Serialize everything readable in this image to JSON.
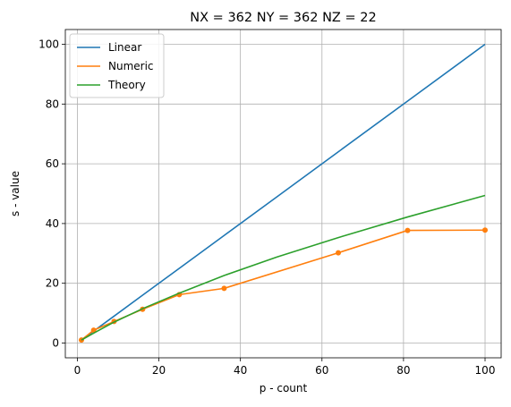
{
  "chart_data": {
    "type": "line",
    "title": "NX = 362 NY = 362 NZ = 22",
    "xlabel": "p - count",
    "ylabel": "s - value",
    "xlim": [
      -2.95,
      103.95
    ],
    "ylim": [
      -4.95,
      104.95
    ],
    "xticks": [
      0,
      20,
      40,
      60,
      80,
      100
    ],
    "yticks": [
      0,
      20,
      40,
      60,
      80,
      100
    ],
    "grid": true,
    "legend_position": "top-left",
    "series": [
      {
        "name": "Linear",
        "color": "#1f77b4",
        "markers": false,
        "x": [
          1,
          4,
          9,
          16,
          25,
          36,
          49,
          64,
          81,
          100
        ],
        "y": [
          1,
          4,
          9,
          16,
          25,
          36,
          49,
          64,
          81,
          100
        ]
      },
      {
        "name": "Numeric",
        "color": "#ff7f0e",
        "markers": true,
        "x": [
          1,
          4,
          9,
          16,
          25,
          36,
          64,
          81,
          100
        ],
        "y": [
          1,
          4.3,
          7.2,
          11.3,
          16.2,
          18.3,
          30.2,
          37.7,
          37.8
        ]
      },
      {
        "name": "Theory",
        "color": "#2ca02c",
        "markers": false,
        "x": [
          1,
          4,
          9,
          16,
          25,
          36,
          49,
          64,
          81,
          100
        ],
        "y": [
          1,
          3.3,
          7.0,
          11.5,
          16.7,
          22.6,
          28.8,
          35.3,
          42.2,
          49.4
        ]
      }
    ]
  }
}
